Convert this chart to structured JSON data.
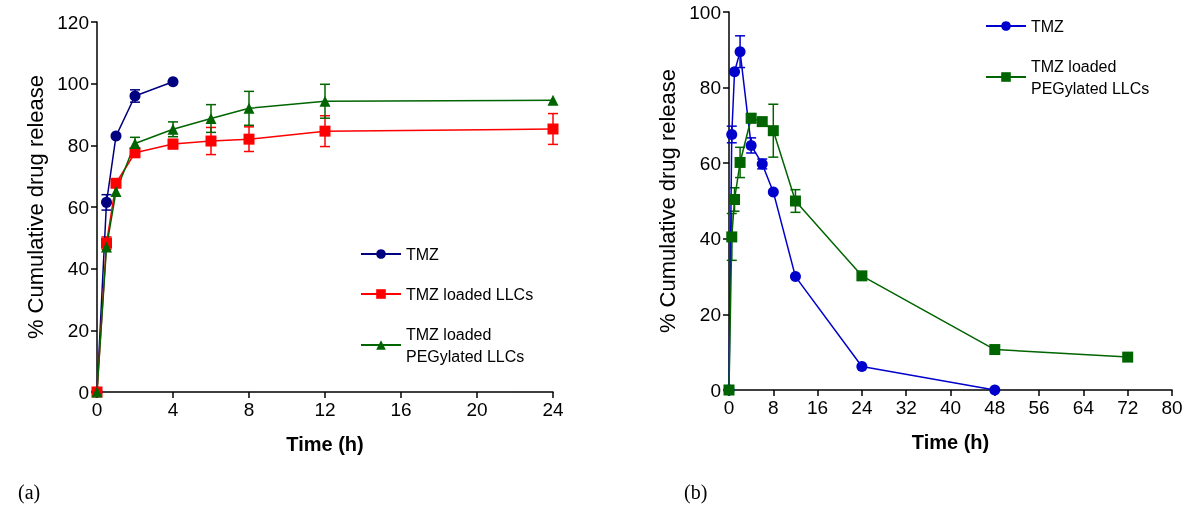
{
  "chart_data": [
    {
      "type": "line",
      "xlabel": "Time (h)",
      "ylabel": "% Cumulative drug release",
      "xlim": [
        0,
        24
      ],
      "xticks": [
        0,
        4,
        8,
        12,
        16,
        20,
        24
      ],
      "ylim": [
        0,
        120
      ],
      "yticks": [
        0,
        20,
        40,
        60,
        80,
        100,
        120
      ],
      "legend": "bottom right",
      "line_style": "solid",
      "annotations": [
        "(a)"
      ],
      "series": [
        {
          "name": "TMZ",
          "color": "#000080",
          "marker": "circle",
          "x": [
            0,
            0.5,
            1,
            2,
            4
          ],
          "values": [
            0,
            61.5,
            83,
            96,
            100.6
          ],
          "errors": [
            null,
            2.5,
            null,
            2,
            null
          ]
        },
        {
          "name": "TMZ loaded LLCs",
          "color": "#ff0000",
          "marker": "square",
          "x": [
            0,
            0.5,
            1,
            2,
            4,
            6,
            8,
            12,
            24
          ],
          "values": [
            0,
            48.3,
            67.7,
            77.6,
            80.4,
            81.4,
            82,
            84.6,
            85.3
          ],
          "errors": [
            null,
            2,
            null,
            1.5,
            1.5,
            4.4,
            4,
            5,
            5
          ]
        },
        {
          "name": "TMZ loaded PEGylated LLCs",
          "color": "#006400",
          "marker": "triangle",
          "x": [
            0,
            0.5,
            1,
            2,
            4,
            6,
            8,
            12,
            24
          ],
          "values": [
            0,
            47,
            65,
            80.6,
            85.2,
            88.7,
            92,
            94.3,
            94.6
          ],
          "errors": [
            null,
            null,
            null,
            2,
            2.4,
            4.5,
            5.5,
            5.5,
            null
          ]
        }
      ]
    },
    {
      "type": "line",
      "xlabel": "Time (h)",
      "ylabel": "% Cumulative drug release",
      "xlim": [
        0,
        80
      ],
      "xticks": [
        0,
        8,
        16,
        24,
        32,
        40,
        48,
        56,
        64,
        72,
        80
      ],
      "ylim": [
        0,
        100
      ],
      "yticks": [
        0,
        20,
        40,
        60,
        80,
        100
      ],
      "legend": "top right",
      "line_style": "solid",
      "annotations": [
        "(b)"
      ],
      "series": [
        {
          "name": "TMZ",
          "color": "#0000cc",
          "marker": "circle",
          "x": [
            0,
            0.5,
            1,
            2,
            4,
            6,
            8,
            12,
            24,
            48
          ],
          "values": [
            0,
            67.6,
            84.2,
            89.5,
            64.7,
            59.8,
            52.4,
            30,
            6.2,
            0
          ],
          "errors": [
            null,
            2.2,
            null,
            4.2,
            2,
            1.3,
            null,
            null,
            null,
            null
          ]
        },
        {
          "name": "TMZ loaded PEGylated LLCs",
          "color": "#006400",
          "marker": "square",
          "x": [
            0,
            0.5,
            1,
            2,
            4,
            6,
            8,
            12,
            24,
            48,
            72
          ],
          "values": [
            0,
            40.5,
            50.4,
            60.2,
            71.9,
            71,
            68.6,
            50,
            30.2,
            10.7,
            8.7
          ],
          "errors": [
            null,
            6.2,
            3.1,
            4,
            1.2,
            null,
            7,
            3,
            null,
            null,
            null
          ]
        }
      ]
    }
  ]
}
